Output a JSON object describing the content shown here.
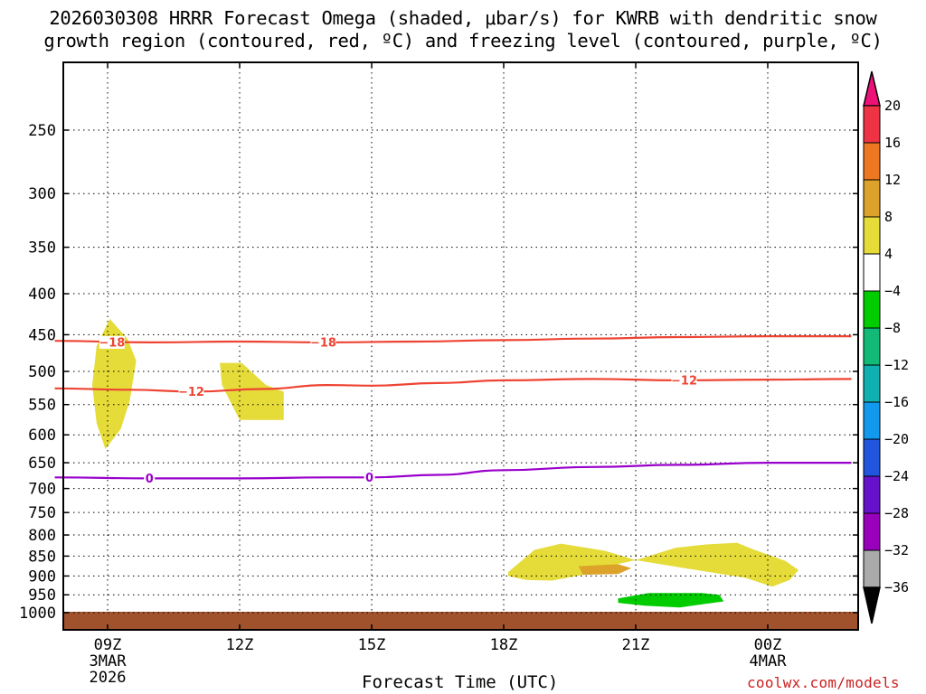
{
  "title": {
    "line1": "2026030308 HRRR Forecast Omega (shaded, μbar/s) for KWRB with dendritic snow",
    "line2": "growth region (contoured, red, ºC) and freezing level (contoured, purple, ºC)"
  },
  "credit": "coolwx.com/models",
  "colors": {
    "dgz_contour": "#ee4433",
    "freezing_contour": "#9900cc",
    "ground": "#a0522d",
    "grid": "#000000"
  },
  "chart_data": {
    "type": "contour",
    "xlabel": "Forecast Time (UTC)",
    "ylabel": "",
    "x_range_hours": [
      7.8,
      25.9
    ],
    "y_range_hpa": [
      1010,
      200
    ],
    "y_scale": "log-pressure",
    "grid": true,
    "x_ticks": [
      {
        "hour": 9,
        "label": "09Z",
        "sub1": "3MAR",
        "sub2": "2026"
      },
      {
        "hour": 12,
        "label": "12Z",
        "sub1": "",
        "sub2": ""
      },
      {
        "hour": 15,
        "label": "15Z",
        "sub1": "",
        "sub2": ""
      },
      {
        "hour": 18,
        "label": "18Z",
        "sub1": "",
        "sub2": ""
      },
      {
        "hour": 21,
        "label": "21Z",
        "sub1": "",
        "sub2": ""
      },
      {
        "hour": 24,
        "label": "00Z",
        "sub1": "4MAR",
        "sub2": ""
      }
    ],
    "y_ticks": [
      250,
      300,
      350,
      400,
      450,
      500,
      550,
      600,
      650,
      700,
      750,
      800,
      850,
      900,
      950,
      1000
    ],
    "colorbar": {
      "labels": [
        "20",
        "16",
        "12",
        "8",
        "4",
        "-4",
        "-8",
        "-12",
        "-16",
        "-20",
        "-24",
        "-28",
        "-32",
        "-36"
      ],
      "colors": [
        "#ee3344",
        "#ee7722",
        "#dda22a",
        "#e5dc3a",
        "#ffffff",
        "#00cc00",
        "#11bb77",
        "#11b0b0",
        "#1199ee",
        "#2255dd",
        "#6611cc",
        "#9900bb",
        "#aaaaaa"
      ],
      "top_triangle": "#ee1177",
      "bottom_triangle": "#000000"
    },
    "contours": [
      {
        "label": "-18",
        "color": "#ee4433",
        "points": [
          [
            7.8,
            458
          ],
          [
            10,
            460
          ],
          [
            12,
            459
          ],
          [
            14,
            460
          ],
          [
            16,
            459
          ],
          [
            18,
            457
          ],
          [
            20,
            455
          ],
          [
            22,
            453
          ],
          [
            24,
            452
          ],
          [
            25.9,
            452
          ]
        ],
        "label_at": [
          [
            9.1,
            460
          ],
          [
            13.9,
            460
          ]
        ]
      },
      {
        "label": "-12",
        "color": "#ee4433",
        "points": [
          [
            7.8,
            525
          ],
          [
            9.5,
            527
          ],
          [
            11,
            530
          ],
          [
            12.5,
            526
          ],
          [
            14,
            520
          ],
          [
            15,
            521
          ],
          [
            16.5,
            517
          ],
          [
            18,
            513
          ],
          [
            20,
            511
          ],
          [
            22,
            513
          ],
          [
            24,
            512
          ],
          [
            25.9,
            511
          ]
        ],
        "label_at": [
          [
            10.9,
            530
          ],
          [
            22.1,
            513
          ]
        ]
      },
      {
        "label": "0",
        "color": "#9900cc",
        "points": [
          [
            7.8,
            678
          ],
          [
            10,
            680
          ],
          [
            12,
            680
          ],
          [
            14,
            678
          ],
          [
            15,
            678
          ],
          [
            16.5,
            673
          ],
          [
            18,
            664
          ],
          [
            20,
            658
          ],
          [
            22,
            654
          ],
          [
            24,
            650
          ],
          [
            25.9,
            650
          ]
        ],
        "label_at": [
          [
            9.95,
            680
          ],
          [
            14.95,
            678
          ]
        ]
      }
    ],
    "shaded_regions": [
      {
        "color": "#e5dc3a",
        "points": [
          [
            9.05,
            430
          ],
          [
            9.45,
            455
          ],
          [
            9.65,
            485
          ],
          [
            9.5,
            545
          ],
          [
            9.3,
            590
          ],
          [
            8.95,
            625
          ],
          [
            8.75,
            580
          ],
          [
            8.65,
            520
          ],
          [
            8.75,
            465
          ]
        ]
      },
      {
        "color": "#e5dc3a",
        "points": [
          [
            11.55,
            488
          ],
          [
            12.05,
            488
          ],
          [
            12.6,
            520
          ],
          [
            13.0,
            530
          ],
          [
            13.0,
            575
          ],
          [
            12.0,
            575
          ],
          [
            11.6,
            520
          ]
        ]
      },
      {
        "color": "#e5dc3a",
        "points": [
          [
            18.1,
            890
          ],
          [
            18.7,
            835
          ],
          [
            19.3,
            820
          ],
          [
            20.3,
            837
          ],
          [
            21.0,
            860
          ],
          [
            20.3,
            877
          ],
          [
            19.9,
            895
          ],
          [
            19.1,
            912
          ],
          [
            18.5,
            910
          ],
          [
            18.1,
            900
          ]
        ]
      },
      {
        "color": "#e5dc3a",
        "points": [
          [
            21.0,
            860
          ],
          [
            21.9,
            830
          ],
          [
            22.6,
            822
          ],
          [
            23.3,
            818
          ],
          [
            23.7,
            835
          ],
          [
            24.4,
            862
          ],
          [
            24.7,
            885
          ],
          [
            24.5,
            910
          ],
          [
            24.1,
            928
          ],
          [
            23.5,
            905
          ],
          [
            22.0,
            878
          ]
        ]
      },
      {
        "color": "#dda22a",
        "points": [
          [
            19.7,
            875
          ],
          [
            20.6,
            870
          ],
          [
            20.9,
            880
          ],
          [
            20.6,
            895
          ],
          [
            19.8,
            897
          ]
        ]
      },
      {
        "color": "#00cc00",
        "points": [
          [
            20.6,
            960
          ],
          [
            21.3,
            945
          ],
          [
            22.5,
            945
          ],
          [
            22.9,
            950
          ],
          [
            23.0,
            968
          ],
          [
            22.0,
            985
          ],
          [
            21.2,
            980
          ],
          [
            20.6,
            972
          ]
        ]
      }
    ]
  }
}
